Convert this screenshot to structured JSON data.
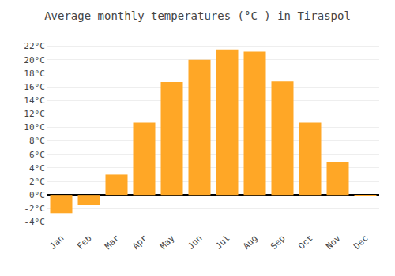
{
  "chart_data": {
    "type": "bar",
    "title": "Average monthly temperatures (°C ) in Tiraspol",
    "categories": [
      "Jan",
      "Feb",
      "Mar",
      "Apr",
      "May",
      "Jun",
      "Jul",
      "Aug",
      "Sep",
      "Oct",
      "Nov",
      "Dec"
    ],
    "values": [
      -2.7,
      -1.5,
      3.0,
      10.7,
      16.7,
      20.0,
      21.5,
      21.2,
      16.8,
      10.7,
      4.8,
      -0.2
    ],
    "color": "#FFA726",
    "ylim": [
      -5,
      23
    ],
    "yticks": [
      {
        "value": -4,
        "label": "-4°C"
      },
      {
        "value": -2,
        "label": "-2°C"
      },
      {
        "value": 0,
        "label": "0°C"
      },
      {
        "value": 2,
        "label": "2°C"
      },
      {
        "value": 4,
        "label": "4°C"
      },
      {
        "value": 6,
        "label": "6°C"
      },
      {
        "value": 8,
        "label": "8°C"
      },
      {
        "value": 10,
        "label": "10°C"
      },
      {
        "value": 12,
        "label": "12°C"
      },
      {
        "value": 14,
        "label": "14°C"
      },
      {
        "value": 16,
        "label": "16°C"
      },
      {
        "value": 18,
        "label": "18°C"
      },
      {
        "value": 20,
        "label": "20°C"
      },
      {
        "value": 22,
        "label": "22°C"
      }
    ],
    "grid": true
  }
}
